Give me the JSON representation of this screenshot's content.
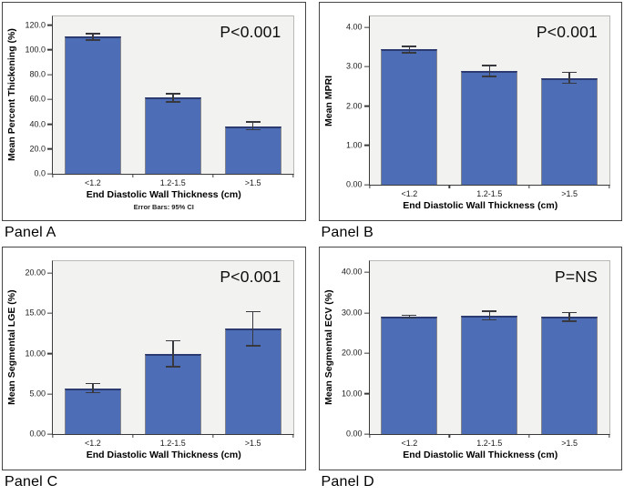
{
  "figure": {
    "captions": [
      "Panel A",
      "Panel B",
      "Panel C",
      "Panel D"
    ]
  },
  "colors": {
    "bar_fill": "#4d6db6",
    "bar_top_border": "#2c3a72",
    "bar_side_border": "#85858a",
    "plot_background": "#f2f2f0",
    "error_bar": "#38383f"
  },
  "chart_data": [
    {
      "type": "bar",
      "panel": "Panel A",
      "annotation": "P<0.001",
      "categories": [
        "<1.2",
        "1.2-1.5",
        ">1.5"
      ],
      "values": [
        110.5,
        61.5,
        38.5
      ],
      "error_bars_95ci": [
        [
          107.5,
          113.5
        ],
        [
          57.5,
          65.0
        ],
        [
          35.0,
          42.5
        ]
      ],
      "xlabel": "End Diastolic Wall Thickness (cm)",
      "ylabel": "Mean Percent Thickening (%)",
      "ylim": [
        0,
        127
      ],
      "yticks": [
        {
          "v": 0,
          "label": "0.0"
        },
        {
          "v": 20,
          "label": "20.0"
        },
        {
          "v": 40,
          "label": "40.0"
        },
        {
          "v": 60,
          "label": "60.0"
        },
        {
          "v": 80,
          "label": "80.0"
        },
        {
          "v": 100,
          "label": "100.0"
        },
        {
          "v": 120,
          "label": "120.0"
        }
      ],
      "footnote": "Error Bars: 95% CI",
      "grid": false,
      "legend": null
    },
    {
      "type": "bar",
      "panel": "Panel B",
      "annotation": "P<0.001",
      "categories": [
        "<1.2",
        "1.2-1.5",
        ">1.5"
      ],
      "values": [
        3.45,
        2.9,
        2.71
      ],
      "error_bars_95ci": [
        [
          3.34,
          3.54
        ],
        [
          2.74,
          3.05
        ],
        [
          2.56,
          2.87
        ]
      ],
      "xlabel": "End Diastolic Wall Thickness (cm)",
      "ylabel": "Mean MPRI",
      "ylim": [
        0,
        4.28
      ],
      "yticks": [
        {
          "v": 0,
          "label": "0.00"
        },
        {
          "v": 1,
          "label": "1.00"
        },
        {
          "v": 2,
          "label": "2.00"
        },
        {
          "v": 3,
          "label": "3.00"
        },
        {
          "v": 4,
          "label": "4.00"
        }
      ],
      "footnote": null,
      "grid": false,
      "legend": null
    },
    {
      "type": "bar",
      "panel": "Panel C",
      "annotation": "P<0.001",
      "categories": [
        "<1.2",
        "1.2-1.5",
        ">1.5"
      ],
      "values": [
        5.7,
        10.0,
        13.1
      ],
      "error_bars_95ci": [
        [
          5.05,
          6.35
        ],
        [
          8.3,
          11.7
        ],
        [
          10.9,
          15.3
        ]
      ],
      "xlabel": "End Diastolic Wall Thickness (cm)",
      "ylabel": "Mean Segmental LGE (%)",
      "ylim": [
        0,
        21.5
      ],
      "yticks": [
        {
          "v": 0,
          "label": "0.00"
        },
        {
          "v": 5,
          "label": "5.00"
        },
        {
          "v": 10,
          "label": "10.00"
        },
        {
          "v": 15,
          "label": "15.00"
        },
        {
          "v": 20,
          "label": "20.00"
        }
      ],
      "footnote": null,
      "grid": false,
      "legend": null
    },
    {
      "type": "bar",
      "panel": "Panel D",
      "annotation": "P=NS",
      "categories": [
        "<1.2",
        "1.2-1.5",
        ">1.5"
      ],
      "values": [
        29.1,
        29.3,
        29.0
      ],
      "error_bars_95ci": [
        [
          28.6,
          29.6
        ],
        [
          28.1,
          30.6
        ],
        [
          27.8,
          30.2
        ]
      ],
      "xlabel": "End Diastolic Wall Thickness (cm)",
      "ylabel": "Mean Segmental ECV (%)",
      "ylim": [
        0,
        42.8
      ],
      "yticks": [
        {
          "v": 0,
          "label": "0.00"
        },
        {
          "v": 10,
          "label": "10.00"
        },
        {
          "v": 20,
          "label": "20.00"
        },
        {
          "v": 30,
          "label": "30.00"
        },
        {
          "v": 40,
          "label": "40.00"
        }
      ],
      "footnote": null,
      "grid": false,
      "legend": null
    }
  ]
}
